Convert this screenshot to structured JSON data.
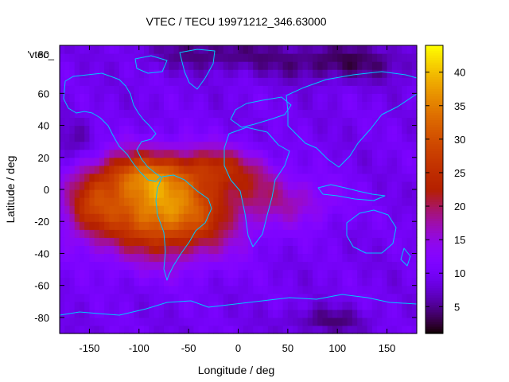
{
  "chart_data": {
    "type": "heatmap",
    "title": "VTEC / TECU 19971212_346.63000",
    "xlabel": "Longitude / deg",
    "ylabel": "Latitude / deg",
    "xlim": [
      -180,
      180
    ],
    "ylim": [
      -90,
      90
    ],
    "xticks": [
      -150,
      -100,
      -50,
      0,
      50,
      100,
      150
    ],
    "yticks": [
      60,
      40,
      20,
      0,
      -20,
      -40,
      -60,
      -80
    ],
    "colorbar": {
      "range": [
        1,
        44
      ],
      "ticks": [
        5,
        10,
        15,
        20,
        25,
        30,
        35,
        40
      ]
    },
    "legend_label": "'vtec_",
    "legend_cut_tick": "80",
    "background_level": 9.5,
    "features": [
      {
        "name": "south-american-anomaly",
        "lon": -75,
        "lat": -12,
        "amp": 27,
        "lon_width": 70,
        "lat_width": 28
      },
      {
        "name": "anomaly-north-crest",
        "lon": -100,
        "lat": 10,
        "amp": 12,
        "lon_width": 45,
        "lat_width": 14
      },
      {
        "name": "anomaly-west-extension",
        "lon": -150,
        "lat": -10,
        "amp": 9,
        "lon_width": 25,
        "lat_width": 18
      },
      {
        "name": "atlantic-crest",
        "lon": -20,
        "lat": 15,
        "amp": 9,
        "lon_width": 35,
        "lat_width": 12
      },
      {
        "name": "indian-ocean-band",
        "lon": 60,
        "lat": -8,
        "amp": 6,
        "lon_width": 45,
        "lat_width": 15
      },
      {
        "name": "africa-band",
        "lon": 20,
        "lat": 5,
        "amp": 5,
        "lon_width": 30,
        "lat_width": 14
      },
      {
        "name": "north-polar-minimum",
        "lon": 100,
        "lat": 80,
        "amp": -6,
        "lon_width": 80,
        "lat_width": 12
      },
      {
        "name": "arctic-minimum",
        "lon": -30,
        "lat": 85,
        "amp": -5,
        "lon_width": 60,
        "lat_width": 10
      },
      {
        "name": "south-polar-minimum",
        "lon": 90,
        "lat": -82,
        "amp": -5,
        "lon_width": 40,
        "lat_width": 8
      },
      {
        "name": "north-pacific-minimum",
        "lon": -165,
        "lat": 30,
        "amp": -3,
        "lon_width": 25,
        "lat_width": 15
      }
    ]
  },
  "colors": {
    "coastline": "#00c8ff",
    "frame": "#000000"
  }
}
